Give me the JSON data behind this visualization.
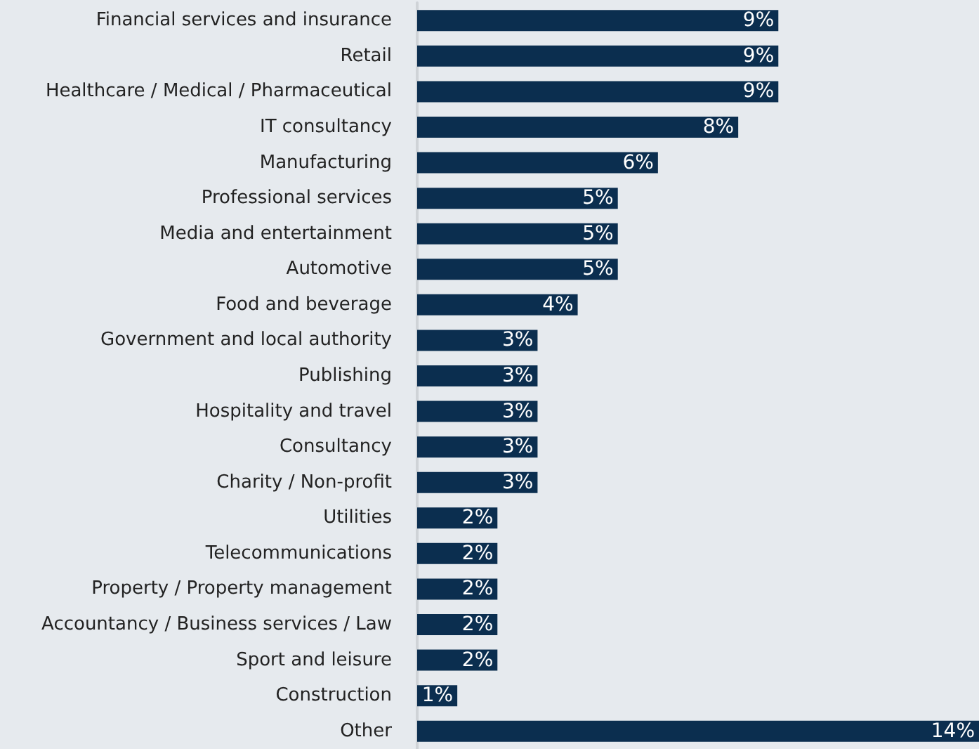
{
  "chart_data": {
    "type": "bar",
    "orientation": "horizontal",
    "categories": [
      "Financial services and insurance",
      "Retail",
      "Healthcare / Medical / Pharmaceutical",
      "IT consultancy",
      "Manufacturing",
      "Professional services",
      "Media and entertainment",
      "Automotive",
      "Food and beverage",
      "Government and local authority",
      "Publishing",
      "Hospitality and travel",
      "Consultancy",
      "Charity / Non-profit",
      "Utilities",
      "Telecommunications",
      "Property / Property management",
      "Accountancy / Business services / Law",
      "Sport and leisure",
      "Construction",
      "Other"
    ],
    "values": [
      9,
      9,
      9,
      8,
      6,
      5,
      5,
      5,
      4,
      3,
      3,
      3,
      3,
      3,
      2,
      2,
      2,
      2,
      2,
      1,
      14
    ],
    "value_labels": [
      "9%",
      "9%",
      "9%",
      "8%",
      "6%",
      "5%",
      "5%",
      "5%",
      "4%",
      "3%",
      "3%",
      "3%",
      "3%",
      "3%",
      "2%",
      "2%",
      "2%",
      "2%",
      "2%",
      "1%",
      "14%"
    ],
    "color": "#0b2e4f"
  }
}
